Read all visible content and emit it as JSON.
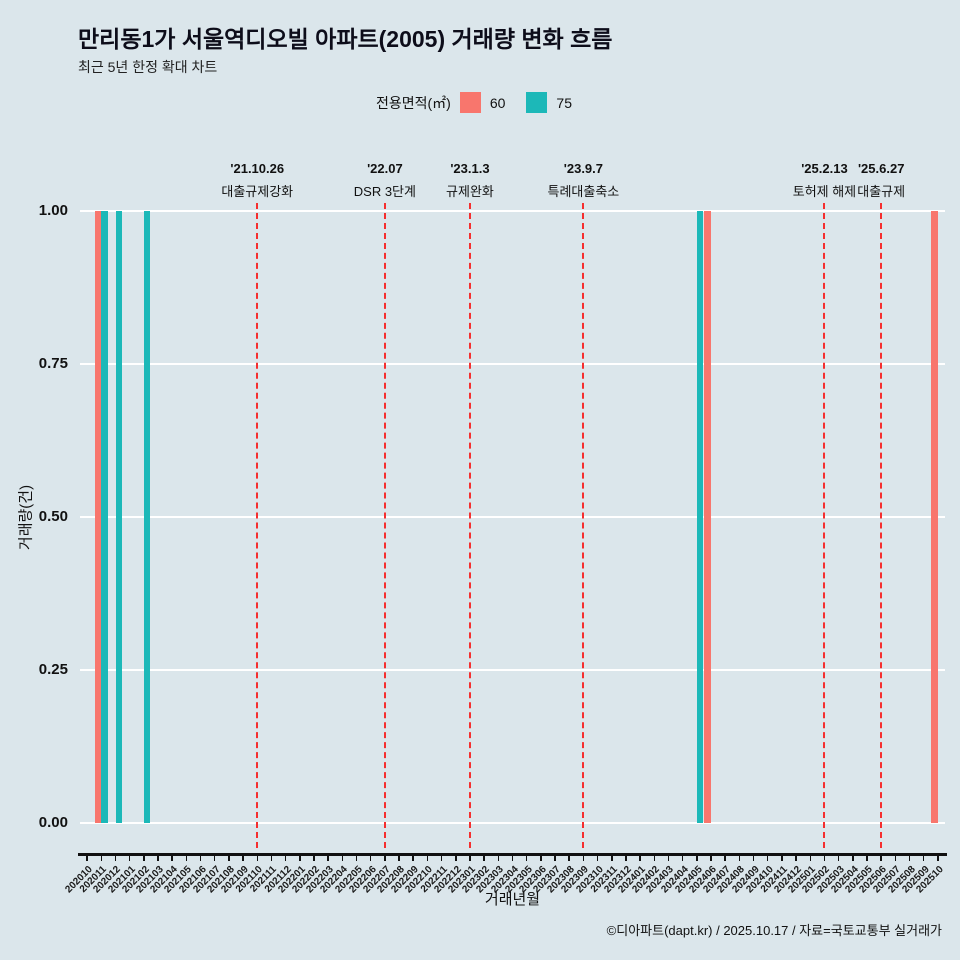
{
  "title": "만리동1가 서울역디오빌 아파트(2005) 거래량 변화 흐름",
  "subtitle": "최근 5년 한정 확대 차트",
  "legend": {
    "label": "전용면적(㎡)"
  },
  "footer": "©디아파트(dapt.kr) / 2025.10.17 / 자료=국토교통부 실거래가",
  "chart_data": {
    "type": "bar",
    "title": "만리동1가 서울역디오빌 아파트(2005) 거래량 변화 흐름",
    "xlabel": "거래년월",
    "ylabel": "거래량(건)",
    "ylim": [
      0,
      1.0
    ],
    "grid": "horizontal-white",
    "legend_position": "top-center",
    "yticks": [
      {
        "v": 0.0,
        "label": "0.00"
      },
      {
        "v": 0.25,
        "label": "0.25"
      },
      {
        "v": 0.5,
        "label": "0.50"
      },
      {
        "v": 0.75,
        "label": "0.75"
      },
      {
        "v": 1.0,
        "label": "1.00"
      }
    ],
    "categories": [
      "202010",
      "202011",
      "202012",
      "202101",
      "202102",
      "202103",
      "202104",
      "202105",
      "202106",
      "202107",
      "202108",
      "202109",
      "202110",
      "202111",
      "202112",
      "202201",
      "202202",
      "202203",
      "202204",
      "202205",
      "202206",
      "202207",
      "202208",
      "202209",
      "202210",
      "202211",
      "202212",
      "202301",
      "202302",
      "202303",
      "202304",
      "202305",
      "202306",
      "202307",
      "202308",
      "202309",
      "202310",
      "202311",
      "202312",
      "202401",
      "202402",
      "202403",
      "202404",
      "202405",
      "202406",
      "202407",
      "202408",
      "202409",
      "202410",
      "202411",
      "202412",
      "202501",
      "202502",
      "202503",
      "202504",
      "202505",
      "202506",
      "202507",
      "202508",
      "202509",
      "202510"
    ],
    "series": [
      {
        "name": "60",
        "color": "#f8766d",
        "points": {
          "202011": 1,
          "202406": 1,
          "202510": 1
        }
      },
      {
        "name": "75",
        "color": "#1cb8b8",
        "points": {
          "202011": 1,
          "202012": 1,
          "202102": 1,
          "202405": 1
        }
      }
    ],
    "events": [
      {
        "x": "202110",
        "date": "'21.10.26",
        "label": "대출규제강화"
      },
      {
        "x": "202207",
        "date": "'22.07",
        "label": "DSR 3단계"
      },
      {
        "x": "202301",
        "date": "'23.1.3",
        "label": "규제완화"
      },
      {
        "x": "202309",
        "date": "'23.9.7",
        "label": "특례대출축소"
      },
      {
        "x": "202502",
        "date": "'25.2.13",
        "label": "토허제 해제"
      },
      {
        "x": "202506",
        "date": "'25.6.27",
        "label": "대출규제"
      }
    ],
    "event_line_color": "#f52f2f"
  }
}
